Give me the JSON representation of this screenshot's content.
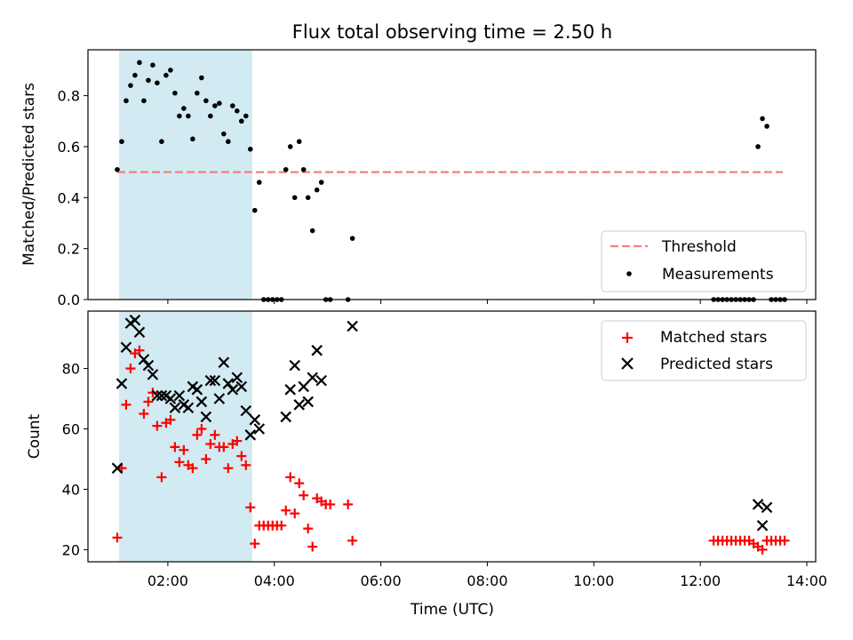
{
  "chart_data": [
    {
      "type": "scatter",
      "title": "Flux total observing time = 2.50 h",
      "ylabel": "Matched/Predicted stars",
      "xlabel": "",
      "x_unit": "hours UTC",
      "xlim": [
        "00:30",
        "14:10"
      ],
      "ylim": [
        0,
        0.98
      ],
      "y_ticks": [
        0.0,
        0.2,
        0.4,
        0.6,
        0.8
      ],
      "y_tick_labels": [
        "0.0",
        "0.2",
        "0.4",
        "0.6",
        "0.8"
      ],
      "shaded_interval": [
        "01:05",
        "03:35"
      ],
      "shaded_color": "#add8e6",
      "legend_placement": "lower-right",
      "legend": [
        {
          "label": "Threshold",
          "kind": "dashed-line",
          "color": "#f08080"
        },
        {
          "label": "Measurements",
          "kind": "point",
          "color": "#000000"
        }
      ],
      "threshold": {
        "name": "Threshold",
        "value": 0.5,
        "x_range": [
          "01:03",
          "13:33"
        ],
        "color": "#f08080"
      },
      "series": [
        {
          "name": "Measurements",
          "color": "#000000",
          "marker": "dot",
          "points": [
            [
              "01:03",
              0.51
            ],
            [
              "01:08",
              0.62
            ],
            [
              "01:13",
              0.78
            ],
            [
              "01:18",
              0.84
            ],
            [
              "01:23",
              0.88
            ],
            [
              "01:28",
              0.93
            ],
            [
              "01:33",
              0.78
            ],
            [
              "01:38",
              0.86
            ],
            [
              "01:43",
              0.92
            ],
            [
              "01:48",
              0.85
            ],
            [
              "01:53",
              0.62
            ],
            [
              "01:58",
              0.88
            ],
            [
              "02:03",
              0.9
            ],
            [
              "02:08",
              0.81
            ],
            [
              "02:13",
              0.72
            ],
            [
              "02:18",
              0.75
            ],
            [
              "02:23",
              0.72
            ],
            [
              "02:28",
              0.63
            ],
            [
              "02:33",
              0.81
            ],
            [
              "02:38",
              0.87
            ],
            [
              "02:43",
              0.78
            ],
            [
              "02:48",
              0.72
            ],
            [
              "02:53",
              0.76
            ],
            [
              "02:58",
              0.77
            ],
            [
              "03:03",
              0.65
            ],
            [
              "03:08",
              0.62
            ],
            [
              "03:13",
              0.76
            ],
            [
              "03:18",
              0.74
            ],
            [
              "03:23",
              0.7
            ],
            [
              "03:28",
              0.72
            ],
            [
              "03:33",
              0.59
            ],
            [
              "03:38",
              0.35
            ],
            [
              "03:43",
              0.46
            ],
            [
              "03:48",
              0.0
            ],
            [
              "03:53",
              0.0
            ],
            [
              "03:58",
              0.0
            ],
            [
              "04:03",
              0.0
            ],
            [
              "04:08",
              0.0
            ],
            [
              "04:13",
              0.51
            ],
            [
              "04:18",
              0.6
            ],
            [
              "04:23",
              0.4
            ],
            [
              "04:28",
              0.62
            ],
            [
              "04:33",
              0.51
            ],
            [
              "04:38",
              0.4
            ],
            [
              "04:43",
              0.27
            ],
            [
              "04:48",
              0.43
            ],
            [
              "04:53",
              0.46
            ],
            [
              "04:58",
              0.0
            ],
            [
              "05:03",
              0.0
            ],
            [
              "05:23",
              0.0
            ],
            [
              "05:28",
              0.24
            ],
            [
              "12:15",
              0.0
            ],
            [
              "12:20",
              0.0
            ],
            [
              "12:25",
              0.0
            ],
            [
              "12:30",
              0.0
            ],
            [
              "12:35",
              0.0
            ],
            [
              "12:40",
              0.0
            ],
            [
              "12:45",
              0.0
            ],
            [
              "12:50",
              0.0
            ],
            [
              "12:55",
              0.0
            ],
            [
              "13:00",
              0.0
            ],
            [
              "13:05",
              0.6
            ],
            [
              "13:10",
              0.71
            ],
            [
              "13:15",
              0.68
            ],
            [
              "13:20",
              0.0
            ],
            [
              "13:25",
              0.0
            ],
            [
              "13:30",
              0.0
            ],
            [
              "13:35",
              0.0
            ]
          ]
        }
      ]
    },
    {
      "type": "scatter",
      "title": "",
      "ylabel": "Count",
      "xlabel": "Time (UTC)",
      "x_unit": "hours UTC",
      "xlim": [
        "00:30",
        "14:10"
      ],
      "ylim": [
        16,
        99
      ],
      "y_ticks": [
        20,
        40,
        60,
        80
      ],
      "y_tick_labels": [
        "20",
        "40",
        "60",
        "80"
      ],
      "x_ticks": [
        "02:00",
        "04:00",
        "06:00",
        "08:00",
        "10:00",
        "12:00",
        "14:00"
      ],
      "x_tick_labels": [
        "02:00",
        "04:00",
        "06:00",
        "08:00",
        "10:00",
        "12:00",
        "14:00"
      ],
      "shaded_interval": [
        "01:05",
        "03:35"
      ],
      "shaded_color": "#add8e6",
      "legend_placement": "upper-right",
      "legend": [
        {
          "label": "Matched stars",
          "kind": "plus",
          "color": "#ff0000"
        },
        {
          "label": "Predicted stars",
          "kind": "x",
          "color": "#000000"
        }
      ],
      "series": [
        {
          "name": "Matched stars",
          "color": "#ff0000",
          "marker": "plus",
          "points": [
            [
              "01:03",
              24
            ],
            [
              "01:08",
              47
            ],
            [
              "01:13",
              68
            ],
            [
              "01:18",
              80
            ],
            [
              "01:23",
              85
            ],
            [
              "01:28",
              86
            ],
            [
              "01:33",
              65
            ],
            [
              "01:38",
              69
            ],
            [
              "01:43",
              72
            ],
            [
              "01:48",
              61
            ],
            [
              "01:53",
              44
            ],
            [
              "01:58",
              62
            ],
            [
              "02:03",
              63
            ],
            [
              "02:08",
              54
            ],
            [
              "02:13",
              49
            ],
            [
              "02:18",
              53
            ],
            [
              "02:23",
              48
            ],
            [
              "02:28",
              47
            ],
            [
              "02:33",
              58
            ],
            [
              "02:38",
              60
            ],
            [
              "02:43",
              50
            ],
            [
              "02:48",
              55
            ],
            [
              "02:53",
              58
            ],
            [
              "02:58",
              54
            ],
            [
              "03:03",
              54
            ],
            [
              "03:08",
              47
            ],
            [
              "03:13",
              55
            ],
            [
              "03:18",
              56
            ],
            [
              "03:23",
              51
            ],
            [
              "03:28",
              48
            ],
            [
              "03:33",
              34
            ],
            [
              "03:38",
              22
            ],
            [
              "03:43",
              28
            ],
            [
              "03:48",
              28
            ],
            [
              "03:53",
              28
            ],
            [
              "03:58",
              28
            ],
            [
              "04:03",
              28
            ],
            [
              "04:08",
              28
            ],
            [
              "04:13",
              33
            ],
            [
              "04:18",
              44
            ],
            [
              "04:23",
              32
            ],
            [
              "04:28",
              42
            ],
            [
              "04:33",
              38
            ],
            [
              "04:38",
              27
            ],
            [
              "04:43",
              21
            ],
            [
              "04:48",
              37
            ],
            [
              "04:53",
              36
            ],
            [
              "04:58",
              35
            ],
            [
              "05:03",
              35
            ],
            [
              "05:23",
              35
            ],
            [
              "05:28",
              23
            ],
            [
              "12:15",
              23
            ],
            [
              "12:20",
              23
            ],
            [
              "12:25",
              23
            ],
            [
              "12:30",
              23
            ],
            [
              "12:35",
              23
            ],
            [
              "12:40",
              23
            ],
            [
              "12:45",
              23
            ],
            [
              "12:50",
              23
            ],
            [
              "12:55",
              23
            ],
            [
              "13:00",
              22
            ],
            [
              "13:05",
              21
            ],
            [
              "13:10",
              20
            ],
            [
              "13:15",
              23
            ],
            [
              "13:20",
              23
            ],
            [
              "13:25",
              23
            ],
            [
              "13:30",
              23
            ],
            [
              "13:35",
              23
            ]
          ]
        },
        {
          "name": "Predicted stars",
          "color": "#000000",
          "marker": "x",
          "points": [
            [
              "01:03",
              47
            ],
            [
              "01:08",
              75
            ],
            [
              "01:13",
              87
            ],
            [
              "01:18",
              95
            ],
            [
              "01:23",
              96
            ],
            [
              "01:28",
              92
            ],
            [
              "01:33",
              83
            ],
            [
              "01:38",
              81
            ],
            [
              "01:43",
              78
            ],
            [
              "01:48",
              71
            ],
            [
              "01:53",
              71
            ],
            [
              "01:58",
              71
            ],
            [
              "02:03",
              70
            ],
            [
              "02:08",
              67
            ],
            [
              "02:13",
              71
            ],
            [
              "02:18",
              68
            ],
            [
              "02:23",
              67
            ],
            [
              "02:28",
              74
            ],
            [
              "02:33",
              73
            ],
            [
              "02:38",
              69
            ],
            [
              "02:43",
              64
            ],
            [
              "02:48",
              76
            ],
            [
              "02:53",
              76
            ],
            [
              "02:58",
              70
            ],
            [
              "03:03",
              82
            ],
            [
              "03:08",
              75
            ],
            [
              "03:13",
              73
            ],
            [
              "03:18",
              77
            ],
            [
              "03:23",
              74
            ],
            [
              "03:28",
              66
            ],
            [
              "03:33",
              58
            ],
            [
              "03:38",
              63
            ],
            [
              "03:43",
              60
            ],
            [
              "04:13",
              64
            ],
            [
              "04:18",
              73
            ],
            [
              "04:23",
              81
            ],
            [
              "04:28",
              68
            ],
            [
              "04:33",
              74
            ],
            [
              "04:38",
              69
            ],
            [
              "04:43",
              77
            ],
            [
              "04:48",
              86
            ],
            [
              "04:53",
              76
            ],
            [
              "05:28",
              94
            ],
            [
              "13:05",
              35
            ],
            [
              "13:10",
              28
            ],
            [
              "13:15",
              34
            ]
          ]
        }
      ]
    }
  ]
}
